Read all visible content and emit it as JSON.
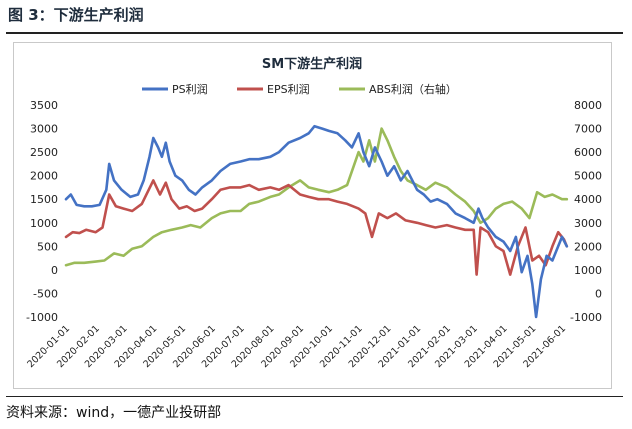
{
  "figure": {
    "title": "图 3：下游生产利润",
    "source": "资料来源：wind，一德产业投研部"
  },
  "chart_data": {
    "type": "line",
    "title": "SM下游生产利润",
    "y_left": {
      "min": -1000,
      "max": 3500,
      "step": 500
    },
    "y_right": {
      "min": -1000,
      "max": 8000,
      "step": 1000
    },
    "x_ticks": [
      "2020-01-01",
      "2020-02-01",
      "2020-03-01",
      "2020-04-01",
      "2020-05-01",
      "2020-06-01",
      "2020-07-01",
      "2020-08-01",
      "2020-09-01",
      "2020-10-01",
      "2020-11-01",
      "2020-12-01",
      "2021-01-01",
      "2021-02-01",
      "2021-03-01",
      "2021-04-01",
      "2021-05-01",
      "2021-06-01"
    ],
    "grid": false,
    "legend_position": "top",
    "series": [
      {
        "name": "PS利润",
        "axis": "left",
        "color": "#4472c4",
        "points": [
          [
            "2020-01-01",
            1500
          ],
          [
            "2020-01-06",
            1600
          ],
          [
            "2020-01-12",
            1380
          ],
          [
            "2020-01-20",
            1350
          ],
          [
            "2020-01-28",
            1350
          ],
          [
            "2020-02-05",
            1380
          ],
          [
            "2020-02-12",
            1700
          ],
          [
            "2020-02-15",
            2250
          ],
          [
            "2020-02-20",
            1900
          ],
          [
            "2020-02-28",
            1700
          ],
          [
            "2020-03-08",
            1550
          ],
          [
            "2020-03-16",
            1600
          ],
          [
            "2020-03-22",
            1900
          ],
          [
            "2020-03-28",
            2400
          ],
          [
            "2020-04-01",
            2800
          ],
          [
            "2020-04-06",
            2600
          ],
          [
            "2020-04-10",
            2400
          ],
          [
            "2020-04-14",
            2700
          ],
          [
            "2020-04-18",
            2300
          ],
          [
            "2020-04-24",
            2000
          ],
          [
            "2020-05-01",
            1900
          ],
          [
            "2020-05-08",
            1700
          ],
          [
            "2020-05-15",
            1600
          ],
          [
            "2020-05-22",
            1750
          ],
          [
            "2020-06-01",
            1900
          ],
          [
            "2020-06-10",
            2100
          ],
          [
            "2020-06-20",
            2250
          ],
          [
            "2020-07-01",
            2300
          ],
          [
            "2020-07-10",
            2350
          ],
          [
            "2020-07-20",
            2350
          ],
          [
            "2020-08-01",
            2400
          ],
          [
            "2020-08-10",
            2500
          ],
          [
            "2020-08-20",
            2700
          ],
          [
            "2020-09-01",
            2800
          ],
          [
            "2020-09-10",
            2900
          ],
          [
            "2020-09-16",
            3050
          ],
          [
            "2020-09-24",
            3000
          ],
          [
            "2020-10-01",
            2950
          ],
          [
            "2020-10-10",
            2900
          ],
          [
            "2020-10-18",
            2750
          ],
          [
            "2020-10-25",
            2600
          ],
          [
            "2020-11-01",
            2900
          ],
          [
            "2020-11-06",
            2500
          ],
          [
            "2020-11-12",
            2200
          ],
          [
            "2020-11-18",
            2600
          ],
          [
            "2020-11-25",
            2300
          ],
          [
            "2020-12-01",
            2000
          ],
          [
            "2020-12-08",
            2200
          ],
          [
            "2020-12-15",
            1900
          ],
          [
            "2020-12-22",
            2100
          ],
          [
            "2021-01-01",
            1700
          ],
          [
            "2021-01-08",
            1600
          ],
          [
            "2021-01-15",
            1450
          ],
          [
            "2021-01-22",
            1500
          ],
          [
            "2021-02-01",
            1400
          ],
          [
            "2021-02-10",
            1200
          ],
          [
            "2021-02-20",
            1100
          ],
          [
            "2021-03-01",
            1000
          ],
          [
            "2021-03-06",
            1300
          ],
          [
            "2021-03-10",
            1100
          ],
          [
            "2021-03-16",
            900
          ],
          [
            "2021-03-24",
            700
          ],
          [
            "2021-04-01",
            600
          ],
          [
            "2021-04-08",
            400
          ],
          [
            "2021-04-14",
            700
          ],
          [
            "2021-04-20",
            -50
          ],
          [
            "2021-04-26",
            300
          ],
          [
            "2021-05-01",
            -300
          ],
          [
            "2021-05-05",
            -1000
          ],
          [
            "2021-05-10",
            -200
          ],
          [
            "2021-05-16",
            300
          ],
          [
            "2021-05-22",
            200
          ],
          [
            "2021-06-01",
            700
          ],
          [
            "2021-06-06",
            500
          ]
        ]
      },
      {
        "name": "EPS利润",
        "axis": "left",
        "color": "#c0504d",
        "points": [
          [
            "2020-01-01",
            700
          ],
          [
            "2020-01-08",
            800
          ],
          [
            "2020-01-15",
            780
          ],
          [
            "2020-01-22",
            850
          ],
          [
            "2020-02-01",
            800
          ],
          [
            "2020-02-08",
            900
          ],
          [
            "2020-02-15",
            1600
          ],
          [
            "2020-02-22",
            1350
          ],
          [
            "2020-03-01",
            1300
          ],
          [
            "2020-03-10",
            1250
          ],
          [
            "2020-03-20",
            1400
          ],
          [
            "2020-04-01",
            1900
          ],
          [
            "2020-04-08",
            1600
          ],
          [
            "2020-04-14",
            1850
          ],
          [
            "2020-04-20",
            1500
          ],
          [
            "2020-04-28",
            1300
          ],
          [
            "2020-05-06",
            1350
          ],
          [
            "2020-05-14",
            1250
          ],
          [
            "2020-05-22",
            1300
          ],
          [
            "2020-06-01",
            1500
          ],
          [
            "2020-06-10",
            1700
          ],
          [
            "2020-06-20",
            1750
          ],
          [
            "2020-07-01",
            1750
          ],
          [
            "2020-07-10",
            1800
          ],
          [
            "2020-07-20",
            1700
          ],
          [
            "2020-08-01",
            1750
          ],
          [
            "2020-08-10",
            1700
          ],
          [
            "2020-08-20",
            1800
          ],
          [
            "2020-09-01",
            1600
          ],
          [
            "2020-09-10",
            1550
          ],
          [
            "2020-09-20",
            1500
          ],
          [
            "2020-10-01",
            1500
          ],
          [
            "2020-10-10",
            1450
          ],
          [
            "2020-10-20",
            1400
          ],
          [
            "2020-11-01",
            1300
          ],
          [
            "2020-11-08",
            1200
          ],
          [
            "2020-11-15",
            700
          ],
          [
            "2020-11-22",
            1200
          ],
          [
            "2020-12-01",
            1100
          ],
          [
            "2020-12-10",
            1200
          ],
          [
            "2020-12-20",
            1050
          ],
          [
            "2021-01-01",
            1000
          ],
          [
            "2021-01-10",
            950
          ],
          [
            "2021-01-20",
            900
          ],
          [
            "2021-02-01",
            950
          ],
          [
            "2021-02-10",
            900
          ],
          [
            "2021-02-20",
            850
          ],
          [
            "2021-03-01",
            850
          ],
          [
            "2021-03-04",
            -100
          ],
          [
            "2021-03-08",
            900
          ],
          [
            "2021-03-16",
            800
          ],
          [
            "2021-03-24",
            500
          ],
          [
            "2021-04-01",
            400
          ],
          [
            "2021-04-08",
            -100
          ],
          [
            "2021-04-16",
            500
          ],
          [
            "2021-04-24",
            900
          ],
          [
            "2021-05-01",
            200
          ],
          [
            "2021-05-08",
            300
          ],
          [
            "2021-05-15",
            100
          ],
          [
            "2021-05-22",
            500
          ],
          [
            "2021-05-28",
            800
          ],
          [
            "2021-06-03",
            650
          ],
          [
            "2021-06-06",
            500
          ]
        ]
      },
      {
        "name": "ABS利润（右轴）",
        "axis": "right",
        "color": "#9bbb59",
        "points": [
          [
            "2020-01-01",
            1200
          ],
          [
            "2020-01-10",
            1300
          ],
          [
            "2020-01-20",
            1300
          ],
          [
            "2020-02-01",
            1350
          ],
          [
            "2020-02-10",
            1400
          ],
          [
            "2020-02-20",
            1700
          ],
          [
            "2020-03-01",
            1600
          ],
          [
            "2020-03-10",
            1900
          ],
          [
            "2020-03-20",
            2000
          ],
          [
            "2020-04-01",
            2400
          ],
          [
            "2020-04-10",
            2600
          ],
          [
            "2020-04-20",
            2700
          ],
          [
            "2020-05-01",
            2800
          ],
          [
            "2020-05-10",
            2900
          ],
          [
            "2020-05-20",
            2800
          ],
          [
            "2020-06-01",
            3200
          ],
          [
            "2020-06-10",
            3400
          ],
          [
            "2020-06-20",
            3500
          ],
          [
            "2020-07-01",
            3500
          ],
          [
            "2020-07-10",
            3800
          ],
          [
            "2020-07-20",
            3900
          ],
          [
            "2020-08-01",
            4100
          ],
          [
            "2020-08-10",
            4200
          ],
          [
            "2020-08-20",
            4500
          ],
          [
            "2020-09-01",
            4800
          ],
          [
            "2020-09-10",
            4500
          ],
          [
            "2020-09-20",
            4400
          ],
          [
            "2020-10-01",
            4300
          ],
          [
            "2020-10-10",
            4400
          ],
          [
            "2020-10-20",
            4600
          ],
          [
            "2020-11-01",
            6000
          ],
          [
            "2020-11-06",
            5600
          ],
          [
            "2020-11-12",
            6500
          ],
          [
            "2020-11-18",
            5600
          ],
          [
            "2020-11-25",
            7000
          ],
          [
            "2020-12-01",
            6500
          ],
          [
            "2020-12-08",
            5800
          ],
          [
            "2020-12-15",
            5200
          ],
          [
            "2020-12-22",
            4800
          ],
          [
            "2021-01-01",
            4600
          ],
          [
            "2021-01-10",
            4400
          ],
          [
            "2021-01-20",
            4700
          ],
          [
            "2021-02-01",
            4500
          ],
          [
            "2021-02-10",
            4200
          ],
          [
            "2021-02-20",
            3900
          ],
          [
            "2021-03-01",
            3500
          ],
          [
            "2021-03-08",
            3000
          ],
          [
            "2021-03-16",
            3200
          ],
          [
            "2021-03-24",
            3600
          ],
          [
            "2021-04-01",
            3800
          ],
          [
            "2021-04-10",
            3900
          ],
          [
            "2021-04-20",
            3600
          ],
          [
            "2021-04-28",
            3200
          ],
          [
            "2021-05-06",
            4300
          ],
          [
            "2021-05-14",
            4100
          ],
          [
            "2021-05-22",
            4200
          ],
          [
            "2021-06-01",
            4000
          ],
          [
            "2021-06-06",
            4000
          ]
        ]
      }
    ]
  }
}
